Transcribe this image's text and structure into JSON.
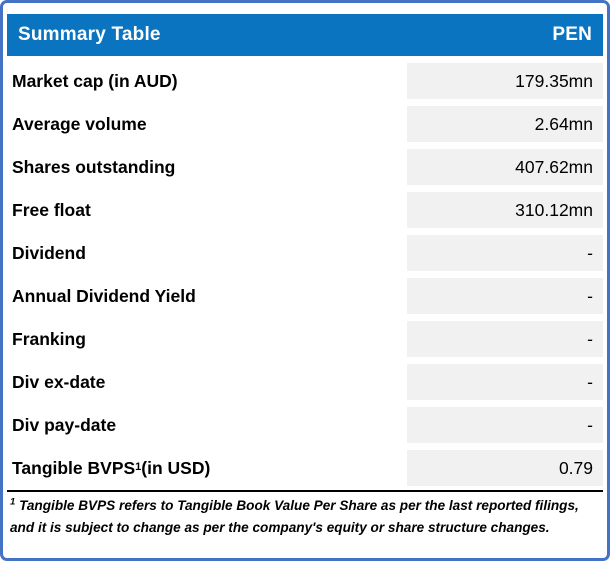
{
  "colors": {
    "outer_border": "#4472C4",
    "header_bg": "#0B74C0",
    "header_text": "#FFFFFF",
    "value_cell_bg": "#F1F1F1",
    "text": "#000000"
  },
  "header": {
    "title": "Summary Table",
    "ticker": "PEN"
  },
  "table": {
    "rows": [
      {
        "label": "Market cap (in AUD)",
        "value": "179.35mn"
      },
      {
        "label": "Average volume",
        "value": "2.64mn"
      },
      {
        "label": "Shares outstanding",
        "value": "407.62mn"
      },
      {
        "label": "Free float",
        "value": "310.12mn"
      },
      {
        "label": "Dividend",
        "value": "-"
      },
      {
        "label": "Annual Dividend Yield",
        "value": "-"
      },
      {
        "label": "Franking",
        "value": "-"
      },
      {
        "label": "Div ex-date",
        "value": "-"
      },
      {
        "label": "Div pay-date",
        "value": "-"
      },
      {
        "label_prefix": "Tangible BVPS",
        "label_sup": "1",
        "label_suffix": " (in USD)",
        "value": "0.79"
      }
    ]
  },
  "footnote": {
    "sup": "1",
    "text": " Tangible BVPS refers to Tangible Book Value Per Share as per the last reported filings, and it is subject to change as per the company's equity or share structure changes."
  }
}
